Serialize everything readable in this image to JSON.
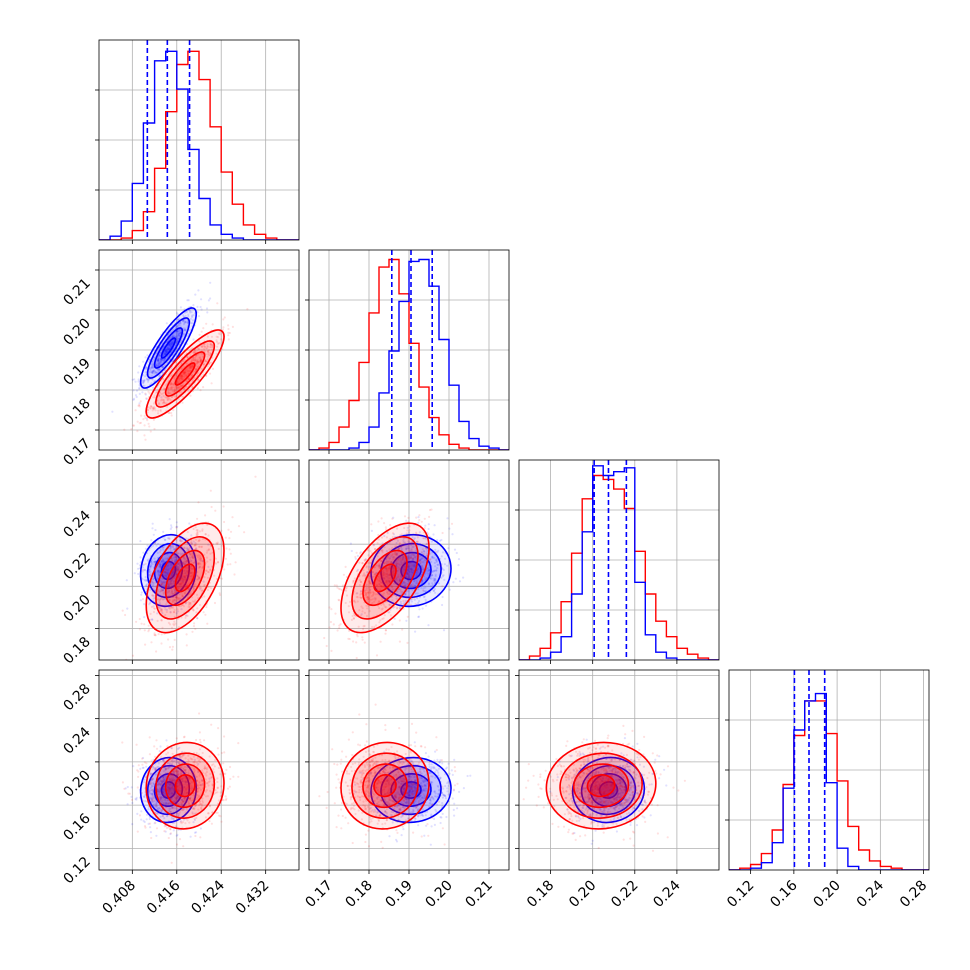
{
  "colors": {
    "blue": "#0000ff",
    "red": "#ff0000",
    "grid": "#b0b0b0"
  },
  "chart_data": {
    "type": "corner",
    "params": [
      {
        "index": 0,
        "range": [
          0.402,
          0.438
        ],
        "ticks": [
          0.408,
          0.416,
          0.424,
          0.432
        ],
        "tick_labels": [
          "0.408",
          "0.416",
          "0.424",
          "0.432"
        ]
      },
      {
        "index": 1,
        "range": [
          0.165,
          0.215
        ],
        "ticks": [
          0.17,
          0.18,
          0.19,
          0.2,
          0.21
        ],
        "tick_labels": [
          "0.17",
          "0.18",
          "0.19",
          "0.20",
          "0.21"
        ]
      },
      {
        "index": 2,
        "range": [
          0.165,
          0.26
        ],
        "ticks": [
          0.18,
          0.2,
          0.22,
          0.24
        ],
        "tick_labels": [
          "0.18",
          "0.20",
          "0.22",
          "0.24"
        ]
      },
      {
        "index": 3,
        "range": [
          0.1,
          0.285
        ],
        "ticks": [
          0.12,
          0.16,
          0.2,
          0.24,
          0.28
        ],
        "tick_labels": [
          "0.12",
          "0.16",
          "0.20",
          "0.24",
          "0.28"
        ]
      }
    ],
    "series": [
      {
        "color": "blue",
        "mean": [
          0.4145,
          0.1905,
          0.2075,
          0.174
        ],
        "sd": [
          0.0025,
          0.005,
          0.0085,
          0.015
        ],
        "quantiles": [
          [
            0.4107,
            0.4143,
            0.4183
          ],
          [
            0.1857,
            0.1905,
            0.1958
          ],
          [
            0.2007,
            0.2075,
            0.216
          ],
          [
            0.1605,
            0.174,
            0.1885
          ]
        ],
        "corr": {
          "1_0": 0.85,
          "2_0": 0.1,
          "2_1": 0.05,
          "3_0": 0.05,
          "3_1": 0.05,
          "3_2": 0.05
        }
      },
      {
        "color": "red",
        "mean": [
          0.4175,
          0.184,
          0.204,
          0.178
        ],
        "sd": [
          0.0035,
          0.0055,
          0.013,
          0.02
        ],
        "quantiles": null,
        "corr": {
          "1_0": 0.85,
          "2_0": 0.5,
          "2_1": 0.55,
          "3_0": 0.05,
          "3_1": 0.05,
          "3_2": 0.05
        }
      }
    ],
    "histograms": {
      "0": {
        "bins": [
          0.402,
          0.404,
          0.406,
          0.408,
          0.41,
          0.412,
          0.414,
          0.416,
          0.418,
          0.42,
          0.422,
          0.424,
          0.426,
          0.428,
          0.43,
          0.432,
          0.434,
          0.436,
          0.438
        ],
        "blue": [
          0.0,
          0.02,
          0.1,
          0.3,
          0.62,
          0.95,
          1.0,
          0.8,
          0.48,
          0.22,
          0.08,
          0.03,
          0.01,
          0.0,
          0.0,
          0.0,
          0.0,
          0.0
        ],
        "red": [
          0.0,
          0.0,
          0.01,
          0.05,
          0.15,
          0.38,
          0.68,
          0.93,
          1.0,
          0.85,
          0.6,
          0.36,
          0.19,
          0.08,
          0.03,
          0.01,
          0.0,
          0.0
        ],
        "ymax": 1.06
      },
      "1": {
        "bins": [
          0.165,
          0.1675,
          0.17,
          0.1725,
          0.175,
          0.1775,
          0.18,
          0.1825,
          0.185,
          0.1875,
          0.19,
          0.1925,
          0.195,
          0.1975,
          0.2,
          0.2025,
          0.205,
          0.2075,
          0.21,
          0.2125,
          0.215
        ],
        "blue": [
          0.0,
          0.0,
          0.0,
          0.0,
          0.01,
          0.04,
          0.12,
          0.3,
          0.52,
          0.78,
          0.99,
          1.0,
          0.86,
          0.58,
          0.34,
          0.15,
          0.06,
          0.02,
          0.01,
          0.0
        ],
        "red": [
          0.0,
          0.01,
          0.04,
          0.12,
          0.26,
          0.46,
          0.72,
          0.96,
          1.0,
          0.82,
          0.56,
          0.33,
          0.17,
          0.08,
          0.03,
          0.01,
          0.0,
          0.0,
          0.0,
          0.0
        ],
        "ymax": 1.05
      },
      "2": {
        "bins": [
          0.165,
          0.17,
          0.175,
          0.18,
          0.185,
          0.19,
          0.195,
          0.2,
          0.205,
          0.21,
          0.215,
          0.22,
          0.225,
          0.23,
          0.235,
          0.24,
          0.245,
          0.25,
          0.255,
          0.26
        ],
        "blue": [
          0.0,
          0.0,
          0.01,
          0.04,
          0.12,
          0.34,
          0.66,
          1.0,
          0.95,
          0.97,
          0.99,
          0.4,
          0.13,
          0.04,
          0.01,
          0.0,
          0.0,
          0.0,
          0.0
        ],
        "red": [
          0.0,
          0.02,
          0.06,
          0.14,
          0.3,
          0.55,
          0.83,
          0.95,
          0.93,
          0.88,
          0.78,
          0.56,
          0.34,
          0.2,
          0.12,
          0.06,
          0.03,
          0.01,
          0.0
        ],
        "ymax": 1.03
      },
      "3": {
        "bins": [
          0.1,
          0.11,
          0.12,
          0.13,
          0.14,
          0.15,
          0.16,
          0.17,
          0.18,
          0.19,
          0.2,
          0.21,
          0.22,
          0.23,
          0.24,
          0.25,
          0.26,
          0.27,
          0.28,
          0.285
        ],
        "blue": [
          0.0,
          0.0,
          0.01,
          0.04,
          0.15,
          0.45,
          0.77,
          0.93,
          0.97,
          0.48,
          0.12,
          0.02,
          0.0,
          0.0,
          0.0,
          0.0,
          0.0,
          0.0,
          0.0
        ],
        "red": [
          0.0,
          0.01,
          0.03,
          0.09,
          0.22,
          0.47,
          0.74,
          0.93,
          0.93,
          0.75,
          0.49,
          0.24,
          0.11,
          0.05,
          0.02,
          0.01,
          0.0,
          0.0,
          0.0
        ],
        "ymax": 1.1
      }
    },
    "points_per_series": 650,
    "grid": true,
    "contour_levels_sigma": [
      0.5,
      1.0,
      1.5,
      2.0
    ]
  }
}
